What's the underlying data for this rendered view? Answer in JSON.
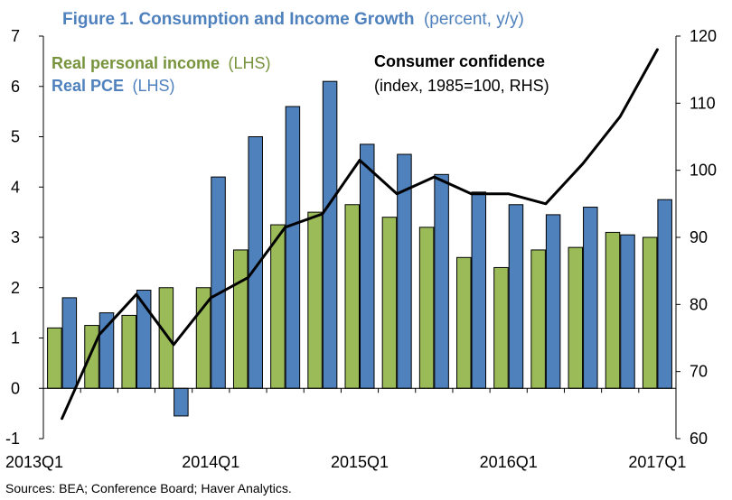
{
  "chart_data": {
    "type": "bar",
    "title": "Figure 1. Consumption and Income Growth",
    "title_units": "(percent, y/y)",
    "x": [
      "2013Q1",
      "2013Q2",
      "2013Q3",
      "2013Q4",
      "2014Q1",
      "2014Q2",
      "2014Q3",
      "2014Q4",
      "2015Q1",
      "2015Q2",
      "2015Q3",
      "2015Q4",
      "2016Q1",
      "2016Q2",
      "2016Q3",
      "2016Q4",
      "2017Q1"
    ],
    "x_tick_labels": [
      "2013Q1",
      "2014Q1",
      "2015Q1",
      "2016Q1",
      "2017Q1"
    ],
    "y_left": {
      "ylim": [
        -1,
        7
      ],
      "ticks": [
        "-1",
        "0",
        "1",
        "2",
        "3",
        "4",
        "5",
        "6",
        "7"
      ]
    },
    "y_right": {
      "ylim": [
        60,
        120
      ],
      "ticks": [
        "60",
        "70",
        "80",
        "90",
        "100",
        "110",
        "120"
      ]
    },
    "grid": false,
    "series": [
      {
        "name": "Real personal income",
        "axis_note": "(LHS)",
        "kind": "bar",
        "color": "#9bbb59",
        "values": [
          1.2,
          1.25,
          1.45,
          2.0,
          2.0,
          2.75,
          3.25,
          3.5,
          3.65,
          3.4,
          3.2,
          2.6,
          2.4,
          2.75,
          2.8,
          3.1,
          3.0
        ]
      },
      {
        "name": "Real PCE",
        "axis_note": "(LHS)",
        "kind": "bar",
        "color": "#4f81bd",
        "values": [
          1.8,
          1.5,
          1.95,
          -0.55,
          4.2,
          5.0,
          5.6,
          6.1,
          4.85,
          4.65,
          4.25,
          3.9,
          3.65,
          3.45,
          3.6,
          3.05,
          3.75
        ]
      },
      {
        "name": "Consumer confidence",
        "axis_note": "(index, 1985=100, RHS)",
        "kind": "line",
        "axis": "right",
        "color": "#000000",
        "values": [
          63,
          75.5,
          81.5,
          74,
          81,
          84,
          91.5,
          93.5,
          101.5,
          96.5,
          99,
          96.5,
          96.5,
          95,
          101,
          108,
          118
        ]
      }
    ],
    "source": "Sources: BEA; Conference Board; Haver Analytics."
  }
}
